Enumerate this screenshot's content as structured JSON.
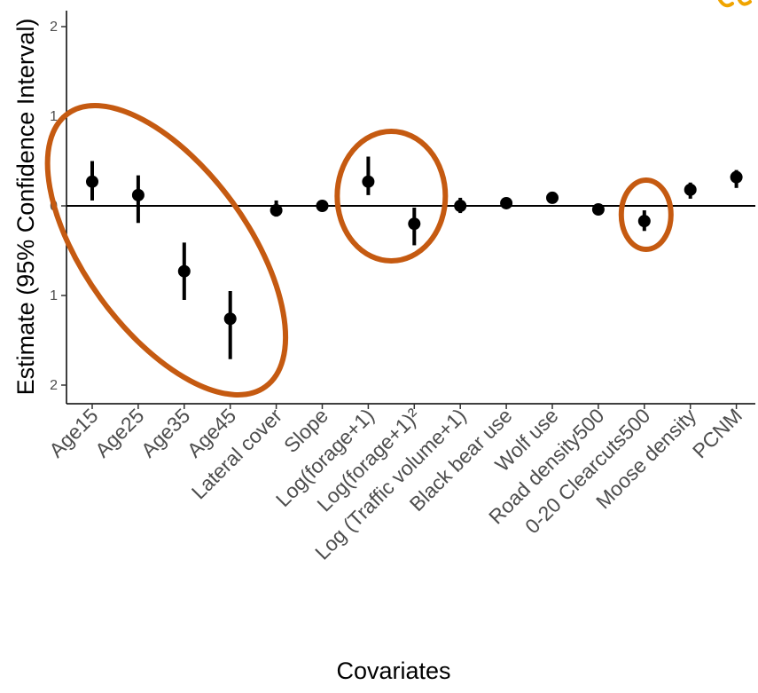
{
  "chart_data": {
    "type": "scatter",
    "subtype": "point-range (estimate with 95% confidence interval)",
    "title": "",
    "xlabel": "Covariates",
    "ylabel": "Estimate (95% Confidence Interval)",
    "ylim": [
      -2.2,
      2.2
    ],
    "y_ticks": [
      {
        "value": 2,
        "label": "2"
      },
      {
        "value": 1,
        "label": "1"
      },
      {
        "value": 0,
        "label": "0"
      },
      {
        "value": -1,
        "label": "1"
      },
      {
        "value": -2,
        "label": "2"
      }
    ],
    "reference_line_y": 0,
    "grid": false,
    "legend": "none",
    "categories": [
      "Age15",
      "Age25",
      "Age35",
      "Age45",
      "Lateral cover",
      "Slope",
      "Log(forage+1)",
      "Log(forage+1)²",
      "Log (Traffic volume+1)",
      "Black bear use",
      "Wolf use",
      "Road density500",
      "0-20 Clearcuts500",
      "Moose density",
      "PCNM"
    ],
    "series": [
      {
        "estimates": [
          0.27,
          0.12,
          -0.73,
          -1.26,
          -0.05,
          0.0,
          0.27,
          -0.2,
          0.0,
          0.03,
          0.09,
          -0.04,
          -0.17,
          0.18,
          0.32
        ],
        "ci_lower": [
          0.06,
          -0.19,
          -1.05,
          -1.71,
          -0.12,
          -0.04,
          0.12,
          -0.44,
          -0.08,
          -0.01,
          0.05,
          -0.09,
          -0.28,
          0.08,
          0.2
        ],
        "ci_upper": [
          0.5,
          0.34,
          -0.41,
          -0.95,
          0.06,
          0.04,
          0.55,
          -0.02,
          0.09,
          0.07,
          0.13,
          0.0,
          -0.05,
          0.26,
          0.4
        ]
      }
    ],
    "annotations": {
      "ellipse_color": "#c55a11",
      "highlighted_groups": [
        [
          "Age15",
          "Age25",
          "Age35",
          "Age45"
        ],
        [
          "Log(forage+1)",
          "Log(forage+1)²"
        ],
        [
          "0-20 Clearcuts500"
        ]
      ]
    },
    "colors": {
      "points": "#000000",
      "axis": "#000000",
      "ellipse": "#c55a11",
      "accent_top_right": "#f0a400"
    }
  }
}
